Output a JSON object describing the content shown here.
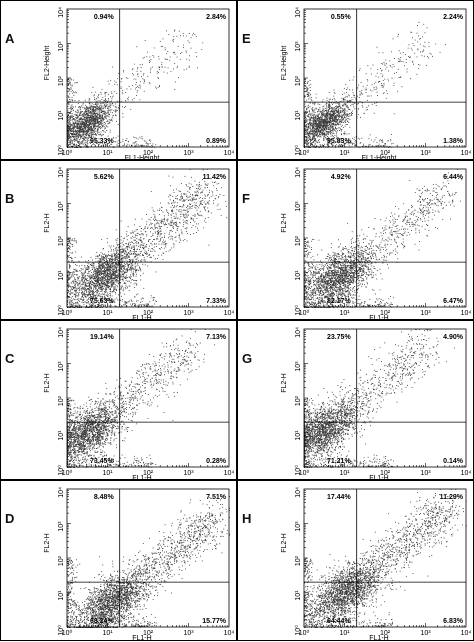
{
  "chart_data": [
    {
      "type": "scatter",
      "panel": "A",
      "xlabel": "FL1-Height",
      "ylabel": "FL2-Height",
      "xlim": [
        1,
        10000
      ],
      "ylim": [
        1,
        10000
      ],
      "log_scale": true,
      "x_ticks": [
        "10⁰",
        "10¹",
        "10²",
        "10³",
        "10⁴"
      ],
      "y_ticks": [
        "10⁰",
        "10¹",
        "10²",
        "10³",
        "10⁴"
      ],
      "gate": {
        "x": 20,
        "y": 20
      },
      "quadrants": {
        "upper_left": "0.94%",
        "upper_right": "2.84%",
        "lower_left": "95.33%",
        "lower_right": "0.89%"
      },
      "population": {
        "center_x": 3,
        "center_y": 5,
        "spread": "tight",
        "diagonal_tail": true,
        "upper_spread": "low"
      }
    },
    {
      "type": "scatter",
      "panel": "E",
      "xlabel": "FL1-Height",
      "ylabel": "FL2-Height",
      "xlim": [
        1,
        10000
      ],
      "ylim": [
        1,
        10000
      ],
      "log_scale": true,
      "x_ticks": [
        "10⁰",
        "10¹",
        "10²",
        "10³",
        "10⁴"
      ],
      "y_ticks": [
        "10⁰",
        "10¹",
        "10²",
        "10³",
        "10⁴"
      ],
      "gate": {
        "x": 20,
        "y": 20
      },
      "quadrants": {
        "upper_left": "0.55%",
        "upper_right": "2.24%",
        "lower_left": "95.83%",
        "lower_right": "1.38%"
      },
      "population": {
        "center_x": 3,
        "center_y": 5,
        "spread": "tight",
        "diagonal_tail": true,
        "upper_spread": "low"
      }
    },
    {
      "type": "scatter",
      "panel": "B",
      "xlabel": "FL1-H",
      "ylabel": "FL2-H",
      "xlim": [
        1,
        10000
      ],
      "ylim": [
        1,
        10000
      ],
      "log_scale": true,
      "x_ticks": [
        "10⁰",
        "10¹",
        "10²",
        "10³",
        "10⁴"
      ],
      "y_ticks": [
        "10⁰",
        "10¹",
        "10²",
        "10³",
        "10⁴"
      ],
      "gate": {
        "x": 20,
        "y": 20
      },
      "quadrants": {
        "upper_left": "5.62%",
        "upper_right": "11.42%",
        "lower_left": "75.63%",
        "lower_right": "7.33%"
      },
      "population": {
        "center_x": 8,
        "center_y": 8,
        "spread": "wide",
        "diagonal_tail": true,
        "upper_spread": "high"
      }
    },
    {
      "type": "scatter",
      "panel": "F",
      "xlabel": "FL1-H",
      "ylabel": "FL2-H",
      "xlim": [
        1,
        10000
      ],
      "ylim": [
        1,
        10000
      ],
      "log_scale": true,
      "x_ticks": [
        "10⁰",
        "10¹",
        "10²",
        "10³",
        "10⁴"
      ],
      "y_ticks": [
        "10⁰",
        "10¹",
        "10²",
        "10³",
        "10⁴"
      ],
      "gate": {
        "x": 20,
        "y": 20
      },
      "quadrants": {
        "upper_left": "4.92%",
        "upper_right": "6.44%",
        "lower_left": "82.17%",
        "lower_right": "6.47%"
      },
      "population": {
        "center_x": 7,
        "center_y": 7,
        "spread": "wide",
        "diagonal_tail": true,
        "upper_spread": "medium"
      }
    },
    {
      "type": "scatter",
      "panel": "C",
      "xlabel": "FL1-H",
      "ylabel": "FL2-H",
      "xlim": [
        1,
        10000
      ],
      "ylim": [
        1,
        10000
      ],
      "log_scale": true,
      "x_ticks": [
        "10⁰",
        "10¹",
        "10²",
        "10³",
        "10⁴"
      ],
      "y_ticks": [
        "10⁰",
        "10¹",
        "10²",
        "10³",
        "10⁴"
      ],
      "gate": {
        "x": 20,
        "y": 20
      },
      "quadrants": {
        "upper_left": "19.14%",
        "upper_right": "7.13%",
        "lower_left": "73.45%",
        "lower_right": "0.28%"
      },
      "population": {
        "center_x": 3,
        "center_y": 10,
        "spread": "wide",
        "diagonal_tail": true,
        "upper_spread": "medium"
      }
    },
    {
      "type": "scatter",
      "panel": "G",
      "xlabel": "FL1-H",
      "ylabel": "FL2-H",
      "xlim": [
        1,
        10000
      ],
      "ylim": [
        1,
        10000
      ],
      "log_scale": true,
      "x_ticks": [
        "10⁰",
        "10¹",
        "10²",
        "10³",
        "10⁴"
      ],
      "y_ticks": [
        "10⁰",
        "10¹",
        "10²",
        "10³",
        "10⁴"
      ],
      "gate": {
        "x": 20,
        "y": 20
      },
      "quadrants": {
        "upper_left": "23.75%",
        "upper_right": "4.90%",
        "lower_left": "71.21%",
        "lower_right": "0.14%"
      },
      "population": {
        "center_x": 3,
        "center_y": 12,
        "spread": "wide",
        "diagonal_tail": true,
        "upper_spread": "medium"
      }
    },
    {
      "type": "scatter",
      "panel": "D",
      "xlabel": "FL1-H",
      "ylabel": "FL2-H",
      "xlim": [
        1,
        10000
      ],
      "ylim": [
        1,
        10000
      ],
      "log_scale": true,
      "x_ticks": [
        "10⁰",
        "10¹",
        "10²",
        "10³",
        "10⁴"
      ],
      "y_ticks": [
        "10⁰",
        "10¹",
        "10²",
        "10³",
        "10⁴"
      ],
      "gate": {
        "x": 20,
        "y": 20
      },
      "quadrants": {
        "upper_left": "8.48%",
        "upper_right": "7.51%",
        "lower_left": "68.24%",
        "lower_right": "15.77%"
      },
      "population": {
        "center_x": 12,
        "center_y": 5,
        "spread": "wide",
        "diagonal_tail": true,
        "upper_spread": "high"
      }
    },
    {
      "type": "scatter",
      "panel": "H",
      "xlabel": "FL1-H",
      "ylabel": "FL2-H",
      "xlim": [
        1,
        10000
      ],
      "ylim": [
        1,
        10000
      ],
      "log_scale": true,
      "x_ticks": [
        "10⁰",
        "10¹",
        "10²",
        "10³",
        "10⁴"
      ],
      "y_ticks": [
        "10⁰",
        "10¹",
        "10²",
        "10³",
        "10⁴"
      ],
      "gate": {
        "x": 20,
        "y": 20
      },
      "quadrants": {
        "upper_left": "17.44%",
        "upper_right": "11.29%",
        "lower_left": "64.44%",
        "lower_right": "6.83%"
      },
      "population": {
        "center_x": 10,
        "center_y": 10,
        "spread": "wide",
        "diagonal_tail": true,
        "upper_spread": "high"
      }
    }
  ],
  "colors": {
    "dots": "#3a3a3a",
    "axes": "#000000",
    "gate_lines": "#000000",
    "background": "#ffffff"
  }
}
